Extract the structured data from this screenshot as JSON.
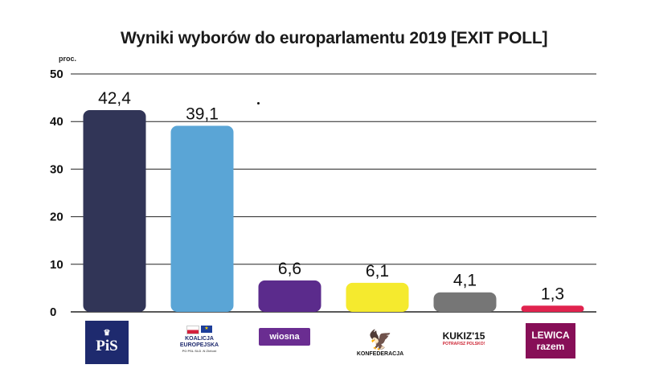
{
  "chart_data": {
    "type": "bar",
    "title": "Wyniki wyborów do europarlamentu 2019 [EXIT POLL]",
    "unit": "proc.",
    "categories": [
      "PiS",
      "Koalicja Europejska",
      "Wiosna",
      "Konfederacja",
      "Kukiz'15",
      "Lewica Razem"
    ],
    "values": [
      42.4,
      39.1,
      6.6,
      6.1,
      4.1,
      1.3
    ],
    "value_labels": [
      "42,4",
      "39,1",
      "6,6",
      "6,1",
      "4,1",
      "1,3"
    ],
    "colors": [
      "#313557",
      "#5aa5d6",
      "#5b2b8c",
      "#f5ea2e",
      "#767676",
      "#e0234e"
    ],
    "ylim": [
      0,
      50
    ],
    "yticks": [
      "0",
      "10",
      "20",
      "30",
      "40",
      "50"
    ],
    "grid": true
  },
  "logos": {
    "pis": {
      "text": "PiS",
      "crown": "♛"
    },
    "ke": {
      "line1": "KOALICJA",
      "line2": "EUROPEJSKA",
      "sub": "PO PSL SLD .N Zieloni",
      "eu": "★"
    },
    "wiosna": {
      "text": "wiosna"
    },
    "konf": {
      "eagle": "🦅",
      "name": "KONFEDERACJA"
    },
    "kukiz": {
      "main": "KUKIZ'15",
      "sub": "POTRAFISZ POLSKO!"
    },
    "razem": {
      "line1": "LEWICA",
      "line2": "razem"
    }
  }
}
